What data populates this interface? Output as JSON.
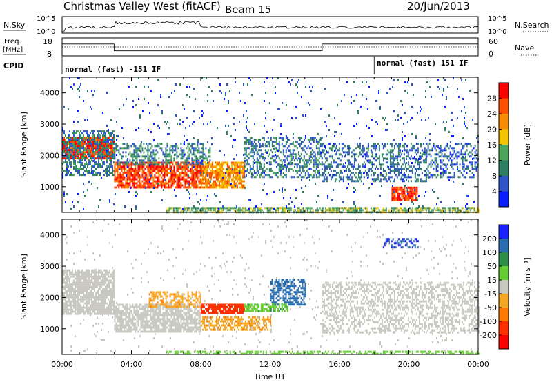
{
  "header": {
    "title": "Christmas Valley West (fitACF)",
    "beam": "Beam 15",
    "date": "20/Jun/2013"
  },
  "strips": {
    "nsky_label": "N.Sky",
    "nsky_ticks": [
      "10^5",
      "10^0"
    ],
    "nsearch_label": "N.Search",
    "nsearch_ticks": [
      "10^5",
      "10^0"
    ],
    "freq_label_1": "Freq.",
    "freq_label_2": "[MHz]",
    "freq_ticks": [
      "18",
      "8"
    ],
    "nave_label": "Nave",
    "nave_ticks": [
      "60",
      "0"
    ],
    "cpid_label": "CPID",
    "cpid_segments": [
      {
        "start_h": 0,
        "end_h": 18,
        "label": "normal (fast) -151 IF"
      },
      {
        "start_h": 18,
        "end_h": 24,
        "label": "normal (fast) 151 IF"
      }
    ],
    "freq_steps": [
      {
        "start_h": 0,
        "end_h": 3,
        "mhz": 14.6
      },
      {
        "start_h": 3,
        "end_h": 15,
        "mhz": 10.8
      },
      {
        "start_h": 15,
        "end_h": 24,
        "mhz": 14.6
      }
    ]
  },
  "chart_data": [
    {
      "type": "heatmap",
      "name": "power",
      "xlabel": "",
      "ylabel": "Slant Range [km]",
      "x_range_hours": [
        0,
        24
      ],
      "y_range_km": [
        180,
        4500
      ],
      "y_ticks": [
        "1000",
        "2000",
        "3000",
        "4000"
      ],
      "colorbar": {
        "label": "Power [dB]",
        "ticks": [
          "4",
          "8",
          "12",
          "16",
          "20",
          "24",
          "28"
        ],
        "range": [
          0,
          32
        ],
        "colors": [
          "#0a1fff",
          "#2f56c8",
          "#2d7f62",
          "#4aa45a",
          "#f5c400",
          "#f78c00",
          "#ff5000",
          "#ff0000"
        ]
      },
      "regions": [
        {
          "t0": 0.0,
          "t1": 3.0,
          "r0": 1900,
          "r1": 2600,
          "value": 28,
          "density": 0.9
        },
        {
          "t0": 0.0,
          "t1": 3.0,
          "r0": 1400,
          "r1": 2800,
          "value": 9,
          "density": 0.55
        },
        {
          "t0": 3.0,
          "t1": 8.0,
          "r0": 950,
          "r1": 1800,
          "value": 27,
          "density": 0.8
        },
        {
          "t0": 3.0,
          "t1": 8.5,
          "r0": 1700,
          "r1": 2400,
          "value": 10,
          "density": 0.45
        },
        {
          "t0": 8.0,
          "t1": 10.5,
          "r0": 1000,
          "r1": 1800,
          "value": 22,
          "density": 0.75
        },
        {
          "t0": 10.5,
          "t1": 15.0,
          "r0": 1300,
          "r1": 2600,
          "value": 9,
          "density": 0.45
        },
        {
          "t0": 15.0,
          "t1": 21.0,
          "r0": 1200,
          "r1": 2400,
          "value": 8,
          "density": 0.4
        },
        {
          "t0": 19.0,
          "t1": 20.5,
          "r0": 600,
          "r1": 1000,
          "value": 28,
          "density": 0.85
        },
        {
          "t0": 21.0,
          "t1": 24.0,
          "r0": 1300,
          "r1": 2400,
          "value": 7,
          "density": 0.35
        },
        {
          "t0": 6.0,
          "t1": 24.0,
          "r0": 180,
          "r1": 350,
          "value": 14,
          "density": 0.7
        },
        {
          "t0": 0.0,
          "t1": 24.0,
          "r0": 300,
          "r1": 4500,
          "value": 6,
          "density": 0.03
        }
      ]
    },
    {
      "type": "heatmap",
      "name": "velocity",
      "xlabel": "Time UT",
      "ylabel": "Slant Range [km]",
      "x_range_hours": [
        0,
        24
      ],
      "x_ticks": [
        "00:00",
        "04:00",
        "08:00",
        "12:00",
        "16:00",
        "20:00",
        "00:00"
      ],
      "y_range_km": [
        180,
        4500
      ],
      "y_ticks": [
        "1000",
        "2000",
        "3000",
        "4000"
      ],
      "colorbar": {
        "label": "Velocity [m s⁻¹]",
        "ticks": [
          "200",
          "100",
          "50",
          "15",
          "-15",
          "-50",
          "-100",
          "-200"
        ],
        "colors": [
          "#1a22ff",
          "#2b6eb0",
          "#2e8f4a",
          "#66cc33",
          "#c8c8c0",
          "#f5a623",
          "#ff7a00",
          "#ff3000",
          "#ff0000"
        ]
      },
      "regions": [
        {
          "t0": 0.0,
          "t1": 3.0,
          "r0": 1500,
          "r1": 2900,
          "value": 0,
          "density": 0.85
        },
        {
          "t0": 3.0,
          "t1": 8.0,
          "r0": 900,
          "r1": 1800,
          "value": 0,
          "density": 0.8
        },
        {
          "t0": 5.0,
          "t1": 8.0,
          "r0": 1700,
          "r1": 2200,
          "value": -40,
          "density": 0.5
        },
        {
          "t0": 8.0,
          "t1": 10.5,
          "r0": 1500,
          "r1": 1800,
          "value": -150,
          "density": 0.85
        },
        {
          "t0": 8.0,
          "t1": 12.0,
          "r0": 1000,
          "r1": 1400,
          "value": -40,
          "density": 0.6
        },
        {
          "t0": 12.0,
          "t1": 14.0,
          "r0": 1800,
          "r1": 2600,
          "value": 150,
          "density": 0.6
        },
        {
          "t0": 10.5,
          "t1": 13.0,
          "r0": 1600,
          "r1": 1800,
          "value": 40,
          "density": 0.7
        },
        {
          "t0": 15.0,
          "t1": 24.0,
          "r0": 900,
          "r1": 2500,
          "value": 0,
          "density": 0.45
        },
        {
          "t0": 6.0,
          "t1": 24.0,
          "r0": 180,
          "r1": 300,
          "value": 30,
          "density": 0.5
        },
        {
          "t0": 18.5,
          "t1": 20.5,
          "r0": 3600,
          "r1": 3900,
          "value": 200,
          "density": 0.5
        },
        {
          "t0": 0.0,
          "t1": 24.0,
          "r0": 300,
          "r1": 4500,
          "value": 0,
          "density": 0.025
        }
      ]
    }
  ]
}
